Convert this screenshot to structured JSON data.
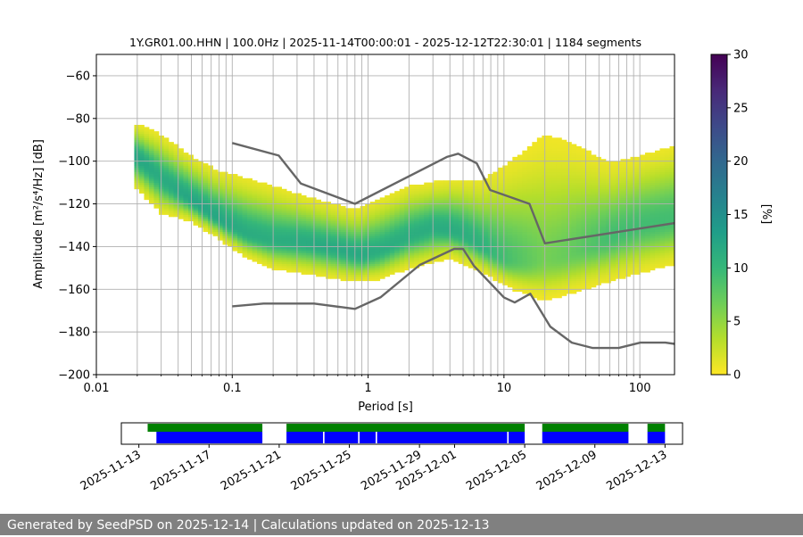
{
  "chart_data": {
    "type": "heatmap",
    "title": "1Y.GR01.00.HHN | 100.0Hz | 2025-11-14T00:00:01 - 2025-12-12T22:30:01 | 1184 segments",
    "xlabel": "Period [s]",
    "ylabel": "Amplitude [m²/s⁴/Hz] [dB]",
    "xscale": "log",
    "xlim": [
      0.01,
      180
    ],
    "ylim": [
      -200,
      -50
    ],
    "x_ticks": [
      {
        "value": 0.01,
        "label": "0.01"
      },
      {
        "value": 0.1,
        "label": "0.1"
      },
      {
        "value": 1,
        "label": "1"
      },
      {
        "value": 10,
        "label": "10"
      },
      {
        "value": 100,
        "label": "100"
      }
    ],
    "y_ticks": [
      {
        "value": -60,
        "label": "−60"
      },
      {
        "value": -80,
        "label": "−80"
      },
      {
        "value": -100,
        "label": "−100"
      },
      {
        "value": -120,
        "label": "−120"
      },
      {
        "value": -140,
        "label": "−140"
      },
      {
        "value": -160,
        "label": "−160"
      },
      {
        "value": -180,
        "label": "−180"
      },
      {
        "value": -200,
        "label": "−200"
      }
    ],
    "grid": true,
    "colorbar": {
      "label": "[%]",
      "min": 0,
      "max": 30,
      "ticks": [
        {
          "value": 0,
          "label": "0"
        },
        {
          "value": 5,
          "label": "5"
        },
        {
          "value": 10,
          "label": "10"
        },
        {
          "value": 15,
          "label": "15"
        },
        {
          "value": 20,
          "label": "20"
        },
        {
          "value": 25,
          "label": "25"
        },
        {
          "value": 30,
          "label": "30"
        }
      ],
      "colors": [
        "#fde725",
        "#b5de2b",
        "#6ece58",
        "#35b779",
        "#1f9e89",
        "#26828e",
        "#31688e",
        "#3e4989",
        "#482878",
        "#440154"
      ]
    },
    "psd_mode": {
      "name": "mode",
      "points": [
        [
          0.02,
          -98
        ],
        [
          0.03,
          -108
        ],
        [
          0.05,
          -118
        ],
        [
          0.08,
          -127
        ],
        [
          0.13,
          -134
        ],
        [
          0.2,
          -137
        ],
        [
          0.35,
          -138
        ],
        [
          0.6,
          -141
        ],
        [
          0.9,
          -144
        ],
        [
          1.3,
          -141
        ],
        [
          2,
          -135
        ],
        [
          3,
          -131
        ],
        [
          4,
          -132
        ],
        [
          5,
          -134
        ],
        [
          7,
          -140
        ],
        [
          10,
          -146
        ],
        [
          15,
          -147
        ],
        [
          25,
          -145
        ],
        [
          50,
          -138
        ],
        [
          100,
          -130
        ],
        [
          180,
          -127
        ]
      ]
    },
    "psd_spread": {
      "name": "upper/lower extent of distribution",
      "upper": [
        [
          0.02,
          -83
        ],
        [
          0.03,
          -88
        ],
        [
          0.05,
          -98
        ],
        [
          0.08,
          -105
        ],
        [
          0.12,
          -108
        ],
        [
          0.2,
          -112
        ],
        [
          0.4,
          -118
        ],
        [
          0.8,
          -123
        ],
        [
          1.2,
          -118
        ],
        [
          2,
          -112
        ],
        [
          4,
          -109
        ],
        [
          7,
          -109
        ],
        [
          12,
          -99
        ],
        [
          20,
          -88
        ],
        [
          30,
          -91
        ],
        [
          60,
          -101
        ],
        [
          100,
          -98
        ],
        [
          180,
          -93
        ]
      ],
      "lower": [
        [
          0.02,
          -113
        ],
        [
          0.03,
          -124
        ],
        [
          0.05,
          -128
        ],
        [
          0.08,
          -136
        ],
        [
          0.12,
          -144
        ],
        [
          0.2,
          -150
        ],
        [
          0.4,
          -153
        ],
        [
          0.8,
          -156
        ],
        [
          1.2,
          -155
        ],
        [
          2,
          -150
        ],
        [
          4,
          -145
        ],
        [
          7,
          -152
        ],
        [
          12,
          -160
        ],
        [
          20,
          -165
        ],
        [
          30,
          -162
        ],
        [
          60,
          -156
        ],
        [
          100,
          -152
        ],
        [
          180,
          -148
        ]
      ]
    },
    "noise_model_high": {
      "name": "NHNM",
      "points": [
        [
          0.1,
          -91.5
        ],
        [
          0.22,
          -97.4
        ],
        [
          0.32,
          -110.5
        ],
        [
          0.8,
          -120
        ],
        [
          3.8,
          -98
        ],
        [
          4.6,
          -96.5
        ],
        [
          6.3,
          -101
        ],
        [
          7.9,
          -113.5
        ],
        [
          15.4,
          -120
        ],
        [
          20,
          -138.5
        ],
        [
          180,
          -129
        ]
      ]
    },
    "noise_model_low": {
      "name": "NLNM",
      "points": [
        [
          0.1,
          -168
        ],
        [
          0.17,
          -166.7
        ],
        [
          0.4,
          -166.7
        ],
        [
          0.8,
          -169.2
        ],
        [
          1.24,
          -163.7
        ],
        [
          2.4,
          -148.6
        ],
        [
          4.3,
          -141.1
        ],
        [
          5,
          -141.1
        ],
        [
          6,
          -149
        ],
        [
          10,
          -163.8
        ],
        [
          12,
          -166.2
        ],
        [
          15.6,
          -162.1
        ],
        [
          21.9,
          -177.5
        ],
        [
          31.6,
          -185
        ],
        [
          45,
          -187.5
        ],
        [
          70,
          -187.5
        ],
        [
          101,
          -185
        ],
        [
          154,
          -185
        ],
        [
          180,
          -185.6
        ]
      ]
    },
    "timeline": {
      "date_ticks": [
        "2025-11-13",
        "2025-11-17",
        "2025-11-21",
        "2025-11-25",
        "2025-11-29",
        "2025-12-01",
        "2025-12-05",
        "2025-12-09",
        "2025-12-13"
      ],
      "range": [
        "2025-11-12T00:00",
        "2025-12-14T00:00"
      ],
      "coverage_segments": [
        [
          "2025-11-13T12:00",
          "2025-11-20T01:00"
        ],
        [
          "2025-11-21T10:00",
          "2025-12-05T00:00"
        ],
        [
          "2025-12-06T00:00",
          "2025-12-10T22:00"
        ],
        [
          "2025-12-12T00:00",
          "2025-12-13T00:00"
        ]
      ],
      "data_segments": [
        [
          "2025-11-14T00:00",
          "2025-11-20T01:00"
        ],
        [
          "2025-11-21T10:00",
          "2025-11-23T12:00"
        ],
        [
          "2025-11-23T14:00",
          "2025-11-25T12:00"
        ],
        [
          "2025-11-25T14:00",
          "2025-11-26T12:00"
        ],
        [
          "2025-11-26T14:00",
          "2025-12-04T00:00"
        ],
        [
          "2025-12-04T02:00",
          "2025-12-05T00:00"
        ],
        [
          "2025-12-06T00:00",
          "2025-12-10T22:00"
        ],
        [
          "2025-12-12T00:00",
          "2025-12-13T00:00"
        ]
      ],
      "colors": {
        "coverage": "#008000",
        "data": "#0000ff"
      }
    }
  },
  "footer": {
    "text": "Generated by SeedPSD on 2025-12-14 | Calculations updated on 2025-12-13"
  }
}
